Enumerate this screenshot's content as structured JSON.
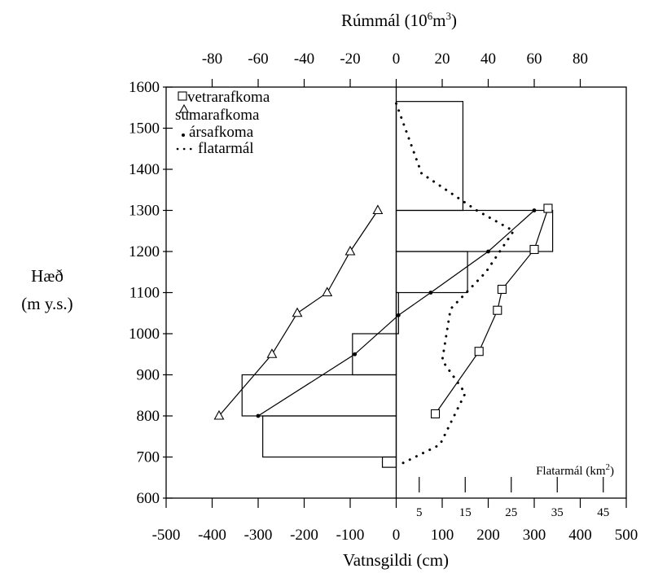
{
  "chart_data": {
    "type": "line",
    "top_axis": {
      "title": "Rúmmál (10⁶m³)",
      "title_main": "Rúmmál (10",
      "title_exp1": "6",
      "title_mid": "m",
      "title_exp2": "3",
      "title_end": ")",
      "ticks": [
        -80,
        -60,
        -40,
        -20,
        0,
        20,
        40,
        60,
        80
      ],
      "tick_labels": [
        "-80",
        "-60",
        "-40",
        "-20",
        "0",
        "20",
        "40",
        "60",
        "80"
      ],
      "range": [
        -100,
        100
      ]
    },
    "bottom_axis": {
      "title": "Vatnsgildi (cm)",
      "ticks": [
        -500,
        -400,
        -300,
        -200,
        -100,
        0,
        100,
        200,
        300,
        400,
        500
      ],
      "tick_labels": [
        "-500",
        "-400",
        "-300",
        "-200",
        "-100",
        "0",
        "100",
        "200",
        "300",
        "400",
        "500"
      ],
      "range": [
        -500,
        500
      ]
    },
    "y_axis": {
      "title_line1": "Hæð",
      "title_line2": "(m y.s.)",
      "ticks": [
        600,
        700,
        800,
        900,
        1000,
        1100,
        1200,
        1300,
        1400,
        1500,
        1600
      ],
      "tick_labels": [
        "600",
        "700",
        "800",
        "900",
        "1000",
        "1100",
        "1200",
        "1300",
        "1400",
        "1500",
        "1600"
      ],
      "range": [
        600,
        1600
      ]
    },
    "area_axis": {
      "title": "Flatarmál (km²)",
      "title_main": "Flatarmál (km",
      "title_exp": "2",
      "title_end": ")",
      "ticks": [
        5,
        15,
        25,
        35,
        45
      ],
      "tick_labels": [
        "5",
        "15",
        "25",
        "35",
        "45"
      ],
      "range": [
        0,
        50
      ]
    },
    "legend": {
      "placement": "top-left",
      "entries": [
        "vetrarafkoma",
        "sumarafkoma",
        "ársafkoma",
        "flatarmál"
      ]
    },
    "volume_bars": [
      {
        "y0": 675,
        "y1": 700,
        "volume": -6
      },
      {
        "y0": 700,
        "y1": 800,
        "volume": -58
      },
      {
        "y0": 800,
        "y1": 900,
        "volume": -67
      },
      {
        "y0": 900,
        "y1": 1000,
        "volume": -19
      },
      {
        "y0": 1000,
        "y1": 1100,
        "volume": 1
      },
      {
        "y0": 1100,
        "y1": 1200,
        "volume": 31
      },
      {
        "y0": 1200,
        "y1": 1300,
        "volume": 68
      },
      {
        "y0": 1300,
        "y1": 1565,
        "volume": 29
      }
    ],
    "series": [
      {
        "name": "vetrarafkoma",
        "marker": "square",
        "points": [
          {
            "x": 330,
            "y": 1305
          },
          {
            "x": 300,
            "y": 1205
          },
          {
            "x": 230,
            "y": 1108
          },
          {
            "x": 220,
            "y": 1057
          },
          {
            "x": 180,
            "y": 957
          },
          {
            "x": 85,
            "y": 805
          }
        ]
      },
      {
        "name": "sumarafkoma",
        "marker": "triangle",
        "points": [
          {
            "x": -40,
            "y": 1300
          },
          {
            "x": -100,
            "y": 1200
          },
          {
            "x": -150,
            "y": 1100
          },
          {
            "x": -215,
            "y": 1050
          },
          {
            "x": -270,
            "y": 950
          },
          {
            "x": -385,
            "y": 800
          }
        ]
      },
      {
        "name": "ársafkoma",
        "marker": "dot",
        "points": [
          {
            "x": 300,
            "y": 1300
          },
          {
            "x": 200,
            "y": 1200
          },
          {
            "x": 75,
            "y": 1100
          },
          {
            "x": 5,
            "y": 1045
          },
          {
            "x": -90,
            "y": 950
          },
          {
            "x": -300,
            "y": 800
          }
        ]
      },
      {
        "name": "flatarmál",
        "style": "dotted",
        "points": [
          {
            "x": 0,
            "y": 1560
          },
          {
            "x": 55,
            "y": 1390
          },
          {
            "x": 175,
            "y": 1300
          },
          {
            "x": 255,
            "y": 1250
          },
          {
            "x": 195,
            "y": 1150
          },
          {
            "x": 118,
            "y": 1060
          },
          {
            "x": 100,
            "y": 935
          },
          {
            "x": 150,
            "y": 855
          },
          {
            "x": 95,
            "y": 730
          },
          {
            "x": 5,
            "y": 680
          }
        ]
      }
    ]
  }
}
